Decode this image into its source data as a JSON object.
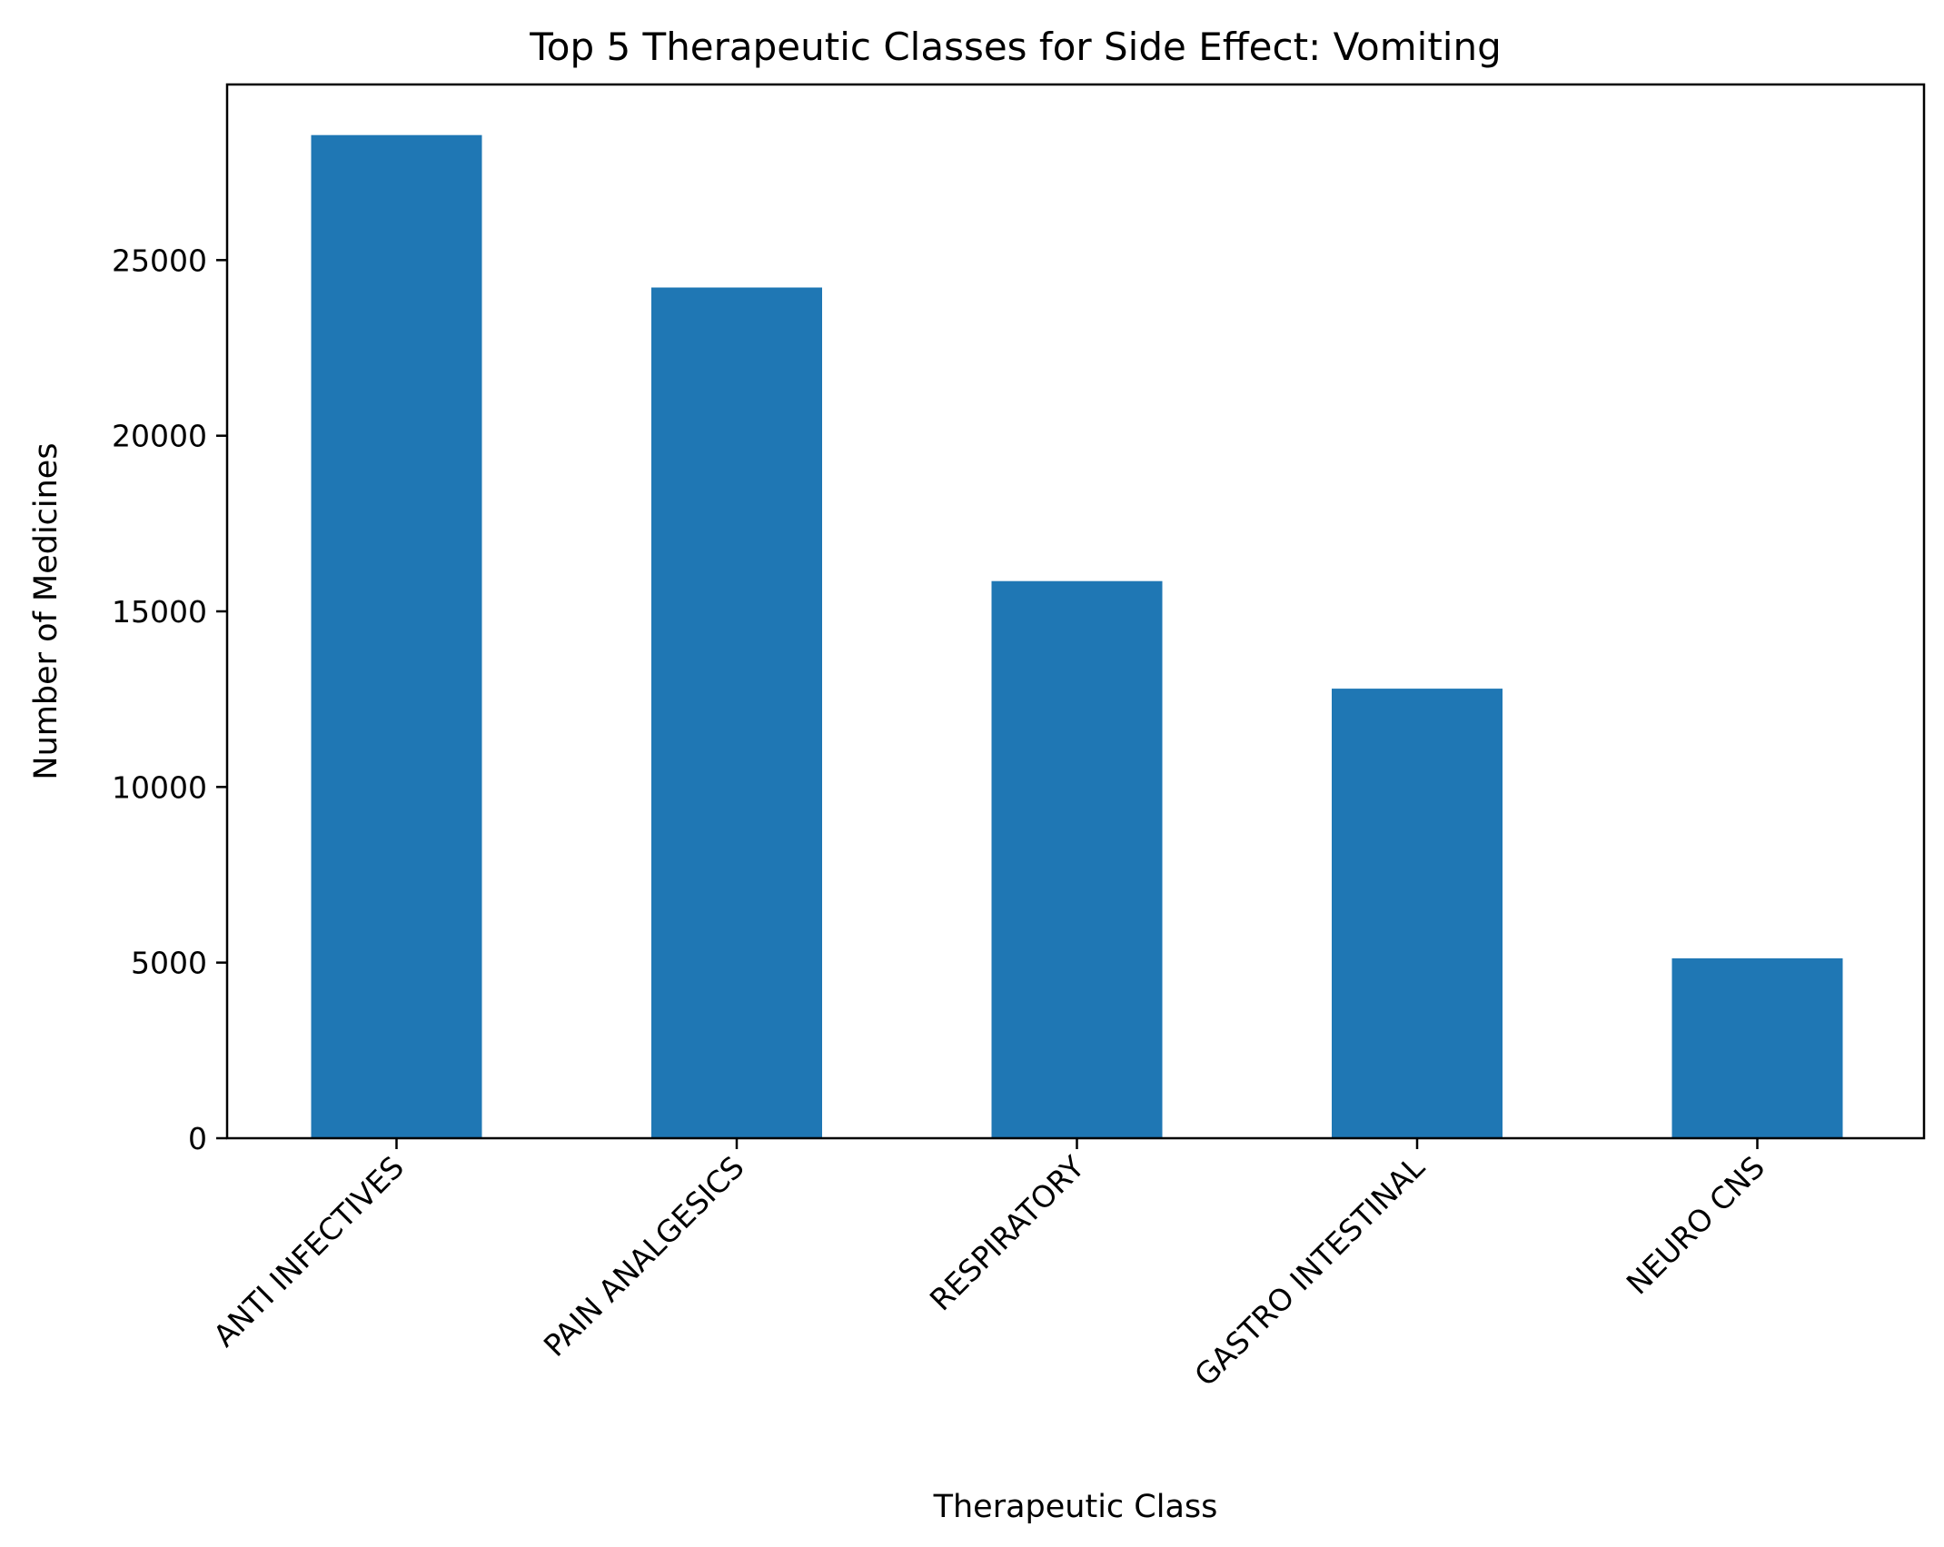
{
  "chart_data": {
    "type": "bar",
    "title": "Top 5 Therapeutic Classes for Side Effect: Vomiting",
    "xlabel": "Therapeutic Class",
    "ylabel": "Number of Medicines",
    "categories": [
      "ANTI INFECTIVES",
      "PAIN ANALGESICS",
      "RESPIRATORY",
      "GASTRO INTESTINAL",
      "NEURO CNS"
    ],
    "values": [
      28560,
      24220,
      15860,
      12800,
      5120
    ],
    "ylim": [
      0,
      30000
    ],
    "yticks": [
      0,
      5000,
      10000,
      15000,
      20000,
      25000
    ],
    "ytick_labels": [
      "0",
      "5000",
      "10000",
      "15000",
      "20000",
      "25000"
    ],
    "grid": false,
    "legend": "none",
    "colors": {
      "bar": "#1f77b4",
      "axis": "#000000",
      "background": "#ffffff"
    }
  }
}
